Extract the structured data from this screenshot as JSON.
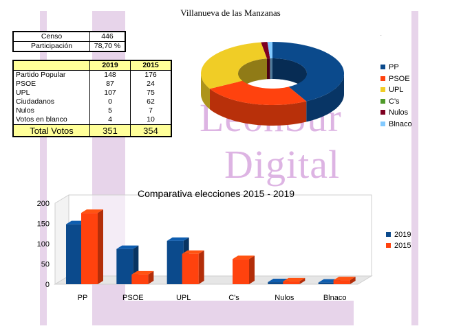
{
  "title": "Villanueva de las Manzanas",
  "watermark": {
    "line1": "LeónSur",
    "line2": "Digital"
  },
  "summary_table": {
    "rows": [
      {
        "label": "Censo",
        "value": "446"
      },
      {
        "label": "Participación",
        "value": "78,70 %"
      }
    ]
  },
  "results_table": {
    "headers": [
      "",
      "2019",
      "2015"
    ],
    "rows": [
      {
        "label": "Partido Popular",
        "v2019": "148",
        "v2015": "176"
      },
      {
        "label": "PSOE",
        "v2019": "87",
        "v2015": "24"
      },
      {
        "label": "UPL",
        "v2019": "107",
        "v2015": "75"
      },
      {
        "label": "Ciudadanos",
        "v2019": "0",
        "v2015": "62"
      },
      {
        "label": "Nulos",
        "v2019": "5",
        "v2015": "7"
      },
      {
        "label": "Votos en blanco",
        "v2019": "4",
        "v2015": "10"
      }
    ],
    "total": {
      "label": "Total Votos",
      "v2019": "351",
      "v2015": "354"
    }
  },
  "chart_data": [
    {
      "type": "pie",
      "title": "",
      "categories": [
        "PP",
        "PSOE",
        "UPL",
        "C's",
        "Nulos",
        "Blnaco"
      ],
      "values": [
        148,
        87,
        107,
        0,
        5,
        4
      ],
      "colors": [
        "#0b4a8c",
        "#ff420e",
        "#f0cd26",
        "#4f9a2a",
        "#7e0021",
        "#83caff"
      ],
      "legend_position": "right"
    },
    {
      "type": "bar",
      "title": "Comparativa elecciones 2015 - 2019",
      "categories": [
        "PP",
        "PSOE",
        "UPL",
        "C's",
        "Nulos",
        "Blnaco"
      ],
      "series": [
        {
          "name": "2019",
          "values": [
            148,
            87,
            107,
            0,
            5,
            4
          ],
          "color": "#0b4a8c"
        },
        {
          "name": "2015",
          "values": [
            176,
            24,
            75,
            62,
            7,
            10
          ],
          "color": "#ff420e"
        }
      ],
      "y_ticks": [
        "0",
        "50",
        "100",
        "150",
        "200"
      ],
      "ylim": [
        0,
        200
      ],
      "grid": false,
      "legend_position": "right"
    }
  ]
}
